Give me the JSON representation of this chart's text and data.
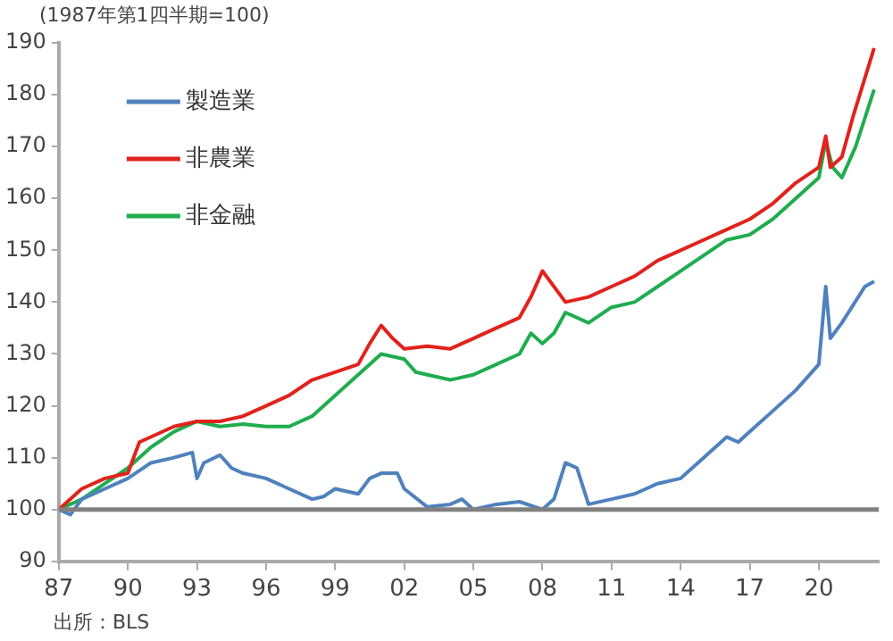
{
  "chart_data": {
    "type": "line",
    "ylabel": "(1987年第1四半期=100)",
    "annotations": [
      "出所：BLS"
    ],
    "xlim": [
      1987,
      2022.6
    ],
    "xticks": [
      {
        "value": 1987,
        "label": "87"
      },
      {
        "value": 1990,
        "label": "90"
      },
      {
        "value": 1993,
        "label": "93"
      },
      {
        "value": 1996,
        "label": "96"
      },
      {
        "value": 1999,
        "label": "99"
      },
      {
        "value": 2002,
        "label": "02"
      },
      {
        "value": 2005,
        "label": "05"
      },
      {
        "value": 2008,
        "label": "08"
      },
      {
        "value": 2011,
        "label": "11"
      },
      {
        "value": 2014,
        "label": "14"
      },
      {
        "value": 2017,
        "label": "17"
      },
      {
        "value": 2020,
        "label": "20"
      }
    ],
    "ylim": [
      90,
      190
    ],
    "yticks": [
      90,
      100,
      110,
      120,
      130,
      140,
      150,
      160,
      170,
      180,
      190
    ],
    "grid": false,
    "legend": "top left",
    "marker": "none",
    "line_style": "solid",
    "ref_lines": [
      {
        "axis": "y",
        "value": 100,
        "color": "#808080"
      }
    ],
    "series": [
      {
        "name": "製造業",
        "color": "#4f81bd",
        "x": [
          1987,
          1987.5,
          1988,
          1989,
          1990,
          1991,
          1992,
          1992.8,
          1993,
          1993.3,
          1994,
          1994.5,
          1995,
          1996,
          1997,
          1998,
          1998.5,
          1999,
          2000,
          2000.5,
          2001,
          2001.7,
          2002,
          2003,
          2004,
          2004.5,
          2005,
          2006,
          2007,
          2008,
          2008.5,
          2009,
          2009.5,
          2010,
          2011,
          2012,
          2012.5,
          2013,
          2014,
          2015,
          2016,
          2016.5,
          2017,
          2018,
          2019,
          2020,
          2020.3,
          2020.5,
          2021,
          2022,
          2022.4
        ],
        "values": [
          100,
          99,
          102,
          104,
          106,
          109,
          110,
          111,
          106,
          109,
          110.5,
          108,
          107,
          106,
          104,
          102,
          102.5,
          104,
          103,
          106,
          107,
          107,
          104,
          100.5,
          101,
          102,
          100,
          101,
          101.5,
          100,
          102,
          109,
          108,
          101,
          102,
          103,
          104,
          105,
          106,
          110,
          114,
          113,
          115,
          119,
          123,
          128,
          143,
          133,
          136,
          143,
          144
        ]
      },
      {
        "name": "非農業",
        "color": "#e0231c",
        "x": [
          1987,
          1988,
          1989,
          1990,
          1990.5,
          1992,
          1993,
          1994,
          1995,
          1996,
          1997,
          1998,
          1999,
          2000,
          2000.5,
          2001,
          2001.5,
          2002,
          2003,
          2004,
          2005,
          2006,
          2007,
          2007.5,
          2008,
          2009,
          2010,
          2011,
          2012,
          2013,
          2014,
          2015,
          2016,
          2017,
          2018,
          2019,
          2020,
          2020.3,
          2020.5,
          2021,
          2021.5,
          2022.4
        ],
        "values": [
          100,
          104,
          106,
          107,
          113,
          116,
          117,
          117,
          118,
          120,
          122,
          125,
          126.5,
          128,
          132,
          135.5,
          133,
          131,
          131.5,
          131,
          133,
          135,
          137,
          141,
          146,
          140,
          141,
          143,
          145,
          148,
          150,
          152,
          154,
          156,
          159,
          163,
          166,
          172,
          166,
          168,
          176,
          189
        ]
      },
      {
        "name": "非金融",
        "color": "#1fad4e",
        "x": [
          1987,
          1988,
          1989,
          1990,
          1991,
          1992,
          1993,
          1994,
          1995,
          1996,
          1997,
          1998,
          1999,
          2000,
          2001,
          2002,
          2002.5,
          2003,
          2004,
          2005,
          2006,
          2007,
          2007.5,
          2008,
          2008.5,
          2009,
          2010,
          2011,
          2012,
          2013,
          2014,
          2015,
          2016,
          2017,
          2018,
          2019,
          2020,
          2020.3,
          2020.6,
          2021,
          2021.6,
          2022.4
        ],
        "values": [
          100,
          102,
          105,
          108,
          112,
          115,
          117,
          116,
          116.5,
          116,
          116,
          118,
          122,
          126,
          130,
          129,
          126.5,
          126,
          125,
          126,
          128,
          130,
          134,
          132,
          134,
          138,
          136,
          139,
          140,
          143,
          146,
          149,
          152,
          153,
          156,
          160,
          164,
          171,
          166,
          164,
          170,
          181
        ]
      }
    ]
  }
}
